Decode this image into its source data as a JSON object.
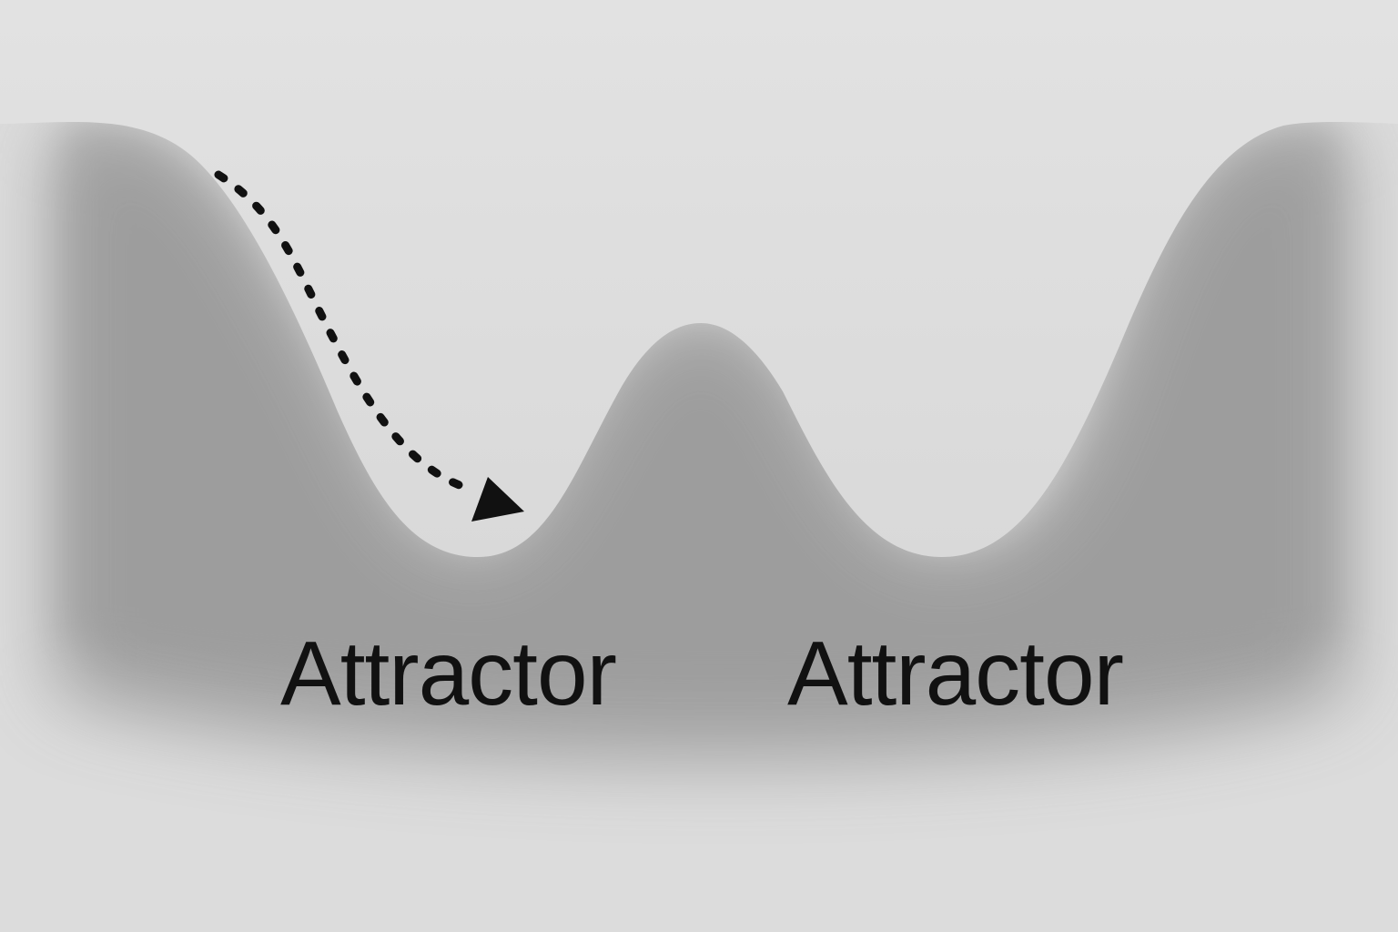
{
  "diagram": {
    "labels": [
      "Attractor",
      "Attractor"
    ],
    "colors": {
      "background": "#dcdcdc",
      "surface_top": "#dedede",
      "shadow": "#8f8f8f",
      "ink": "#111111"
    },
    "icons": [
      "dotted-trajectory-arrow"
    ]
  }
}
